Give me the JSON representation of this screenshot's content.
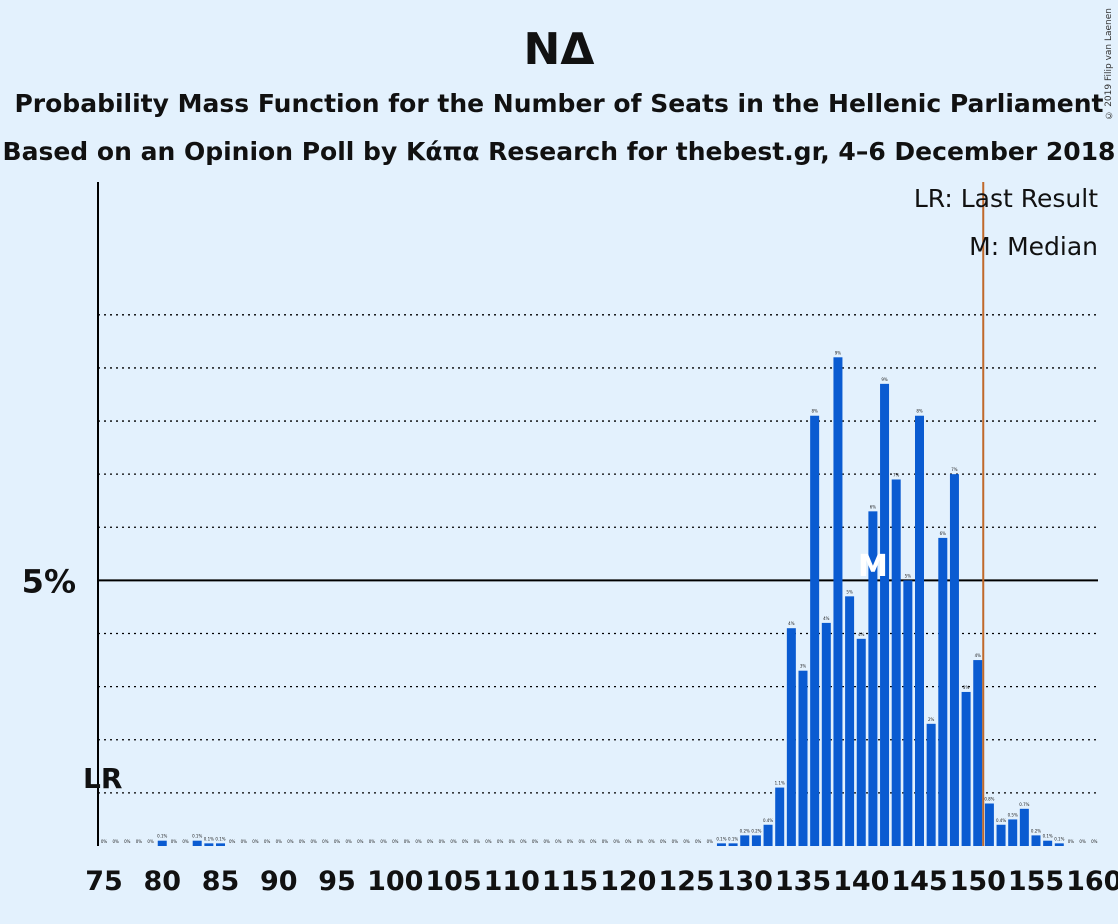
{
  "header": {
    "title": "ΝΔ",
    "subtitle1": "Probability Mass Function for the Number of Seats in the Hellenic Parliament",
    "subtitle2": "Based on an Opinion Poll by Κάπα Research for thebest.gr, 4–6 December 2018"
  },
  "copyright": "© 2019 Filip van Laenen",
  "legend": {
    "lr": "LR: Last Result",
    "m": "M: Median"
  },
  "colors": {
    "background": "#e3f1fd",
    "bar": "#0a5bd1",
    "last_result_line": "#c0692a",
    "axis": "#000000"
  },
  "chart_data": {
    "type": "bar",
    "title": "ΝΔ",
    "xlabel": "",
    "ylabel": "",
    "ylim": [
      0,
      12.5
    ],
    "y_tick_label": "5%",
    "y_tick_value": 5,
    "gridlines": [
      1,
      2,
      3,
      4,
      5,
      6,
      7,
      8,
      9,
      10
    ],
    "x_tick_labels": [
      75,
      80,
      85,
      90,
      95,
      100,
      105,
      110,
      115,
      120,
      125,
      130,
      135,
      140,
      145,
      150,
      155,
      160
    ],
    "last_result": 150,
    "last_result_label": "LR",
    "median": 141,
    "median_label": "M",
    "x": [
      75,
      76,
      77,
      78,
      79,
      80,
      81,
      82,
      83,
      84,
      85,
      86,
      87,
      88,
      89,
      90,
      91,
      92,
      93,
      94,
      95,
      96,
      97,
      98,
      99,
      100,
      101,
      102,
      103,
      104,
      105,
      106,
      107,
      108,
      109,
      110,
      111,
      112,
      113,
      114,
      115,
      116,
      117,
      118,
      119,
      120,
      121,
      122,
      123,
      124,
      125,
      126,
      127,
      128,
      129,
      130,
      131,
      132,
      133,
      134,
      135,
      136,
      137,
      138,
      139,
      140,
      141,
      142,
      143,
      144,
      145,
      146,
      147,
      148,
      149,
      150,
      151,
      152,
      153,
      154,
      155,
      156,
      157,
      158,
      159,
      160
    ],
    "values": [
      0,
      0,
      0,
      0,
      0,
      0.1,
      0,
      0,
      0.1,
      0.05,
      0.05,
      0,
      0,
      0,
      0,
      0,
      0,
      0,
      0,
      0,
      0,
      0,
      0,
      0,
      0,
      0,
      0,
      0,
      0,
      0,
      0,
      0,
      0,
      0,
      0,
      0,
      0,
      0,
      0,
      0,
      0,
      0,
      0,
      0,
      0,
      0,
      0,
      0,
      0,
      0,
      0,
      0,
      0,
      0.05,
      0.05,
      0.2,
      0.2,
      0.4,
      1.1,
      4.1,
      3.3,
      8.1,
      4.2,
      9.2,
      4.7,
      3.9,
      6.3,
      8.7,
      6.9,
      5,
      8.1,
      2.3,
      5.8,
      7,
      2.9,
      3.5,
      0.8,
      0.4,
      0.5,
      0.7,
      0.2,
      0.1,
      0.05,
      0,
      0,
      0
    ],
    "labels": [
      "0%",
      "0%",
      "0%",
      "0%",
      "0%",
      "0.1%",
      "0%",
      "0%",
      "0.1%",
      "0.1%",
      "0.1%",
      "0%",
      "0%",
      "0%",
      "0%",
      "0%",
      "0%",
      "0%",
      "0%",
      "0%",
      "0%",
      "0%",
      "0%",
      "0%",
      "0%",
      "0%",
      "0%",
      "0%",
      "0%",
      "0%",
      "0%",
      "0%",
      "0%",
      "0%",
      "0%",
      "0%",
      "0%",
      "0%",
      "0%",
      "0%",
      "0%",
      "0%",
      "0%",
      "0%",
      "0%",
      "0%",
      "0%",
      "0%",
      "0%",
      "0%",
      "0%",
      "0%",
      "0%",
      "0.1%",
      "0.1%",
      "0.2%",
      "0.2%",
      "0.4%",
      "1.1%",
      "4%",
      "3%",
      "8%",
      "4%",
      "9%",
      "5%",
      "4%",
      "6%",
      "9%",
      "7%",
      "5%",
      "8%",
      "2%",
      "6%",
      "7%",
      "3%",
      "4%",
      "0.8%",
      "0.4%",
      "0.5%",
      "0.7%",
      "0.2%",
      "0.1%",
      "0.1%",
      "0%",
      "0%",
      "0%"
    ]
  }
}
